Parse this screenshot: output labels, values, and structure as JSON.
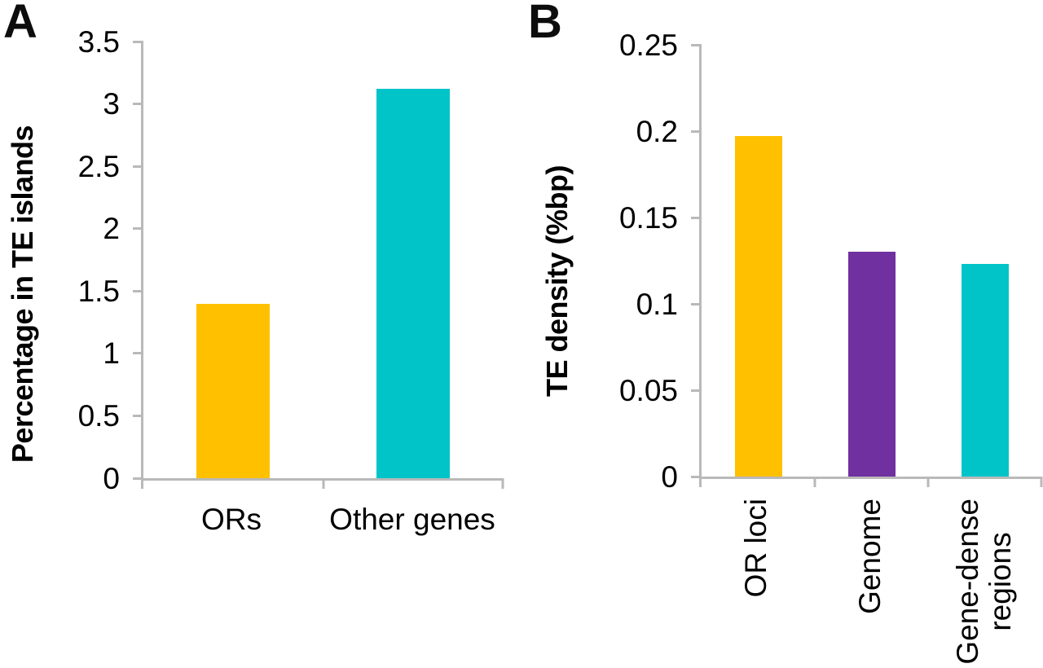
{
  "chart_data": [
    {
      "type": "bar",
      "panel_label": "A",
      "title": "",
      "categories": [
        "ORs",
        "Other genes"
      ],
      "values": [
        1.4,
        3.12
      ],
      "bar_colors": [
        "#FFC000",
        "#00C4C8"
      ],
      "xlabel": "",
      "ylabel": "Percentage in TE islands",
      "ylim": [
        0,
        3.5
      ],
      "yticks": [
        "3.5",
        "3",
        "2.5",
        "2",
        "1.5",
        "1",
        "0.5",
        "0"
      ],
      "xtick_display": [
        "ORs",
        "Other genes"
      ],
      "grid": false,
      "legend": null
    },
    {
      "type": "bar",
      "panel_label": "B",
      "title": "",
      "categories": [
        "OR loci",
        "Genome",
        "Gene-dense regions"
      ],
      "values": [
        0.197,
        0.13,
        0.123
      ],
      "bar_colors": [
        "#FFC000",
        "#7030A0",
        "#00C4C8"
      ],
      "xlabel": "",
      "ylabel": "TE density (%bp)",
      "ylim": [
        0,
        0.25
      ],
      "yticks": [
        "0.25",
        "0.2",
        "0.15",
        "0.1",
        "0.05",
        "0"
      ],
      "xtick_display": [
        "OR loci",
        "Genome",
        "Gene-dense\nregions"
      ],
      "xtick_rotation_deg": 90,
      "grid": false,
      "legend": null
    }
  ]
}
